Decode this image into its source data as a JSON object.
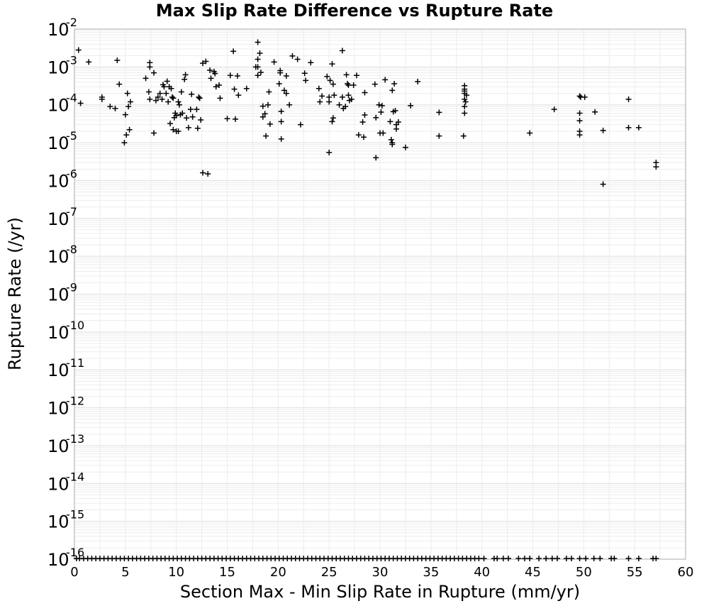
{
  "chart_data": {
    "type": "scatter",
    "title": "Max Slip Rate Difference vs Rupture Rate",
    "xlabel": "Section Max - Min Slip Rate in Rupture (mm/yr)",
    "ylabel": "Rupture Rate (/yr)",
    "xlim": [
      0,
      60
    ],
    "ylim": [
      1e-16,
      0.01
    ],
    "yscale": "log",
    "grid": true,
    "marker": "plus",
    "marker_color": "#000000",
    "x_ticks": [
      "0",
      "5",
      "10",
      "15",
      "20",
      "25",
      "30",
      "35",
      "40",
      "45",
      "50",
      "55",
      "60"
    ],
    "y_ticks": [
      {
        "base": "10",
        "exp": "-2"
      },
      {
        "base": "10",
        "exp": "-3"
      },
      {
        "base": "10",
        "exp": "-4"
      },
      {
        "base": "10",
        "exp": "-5"
      },
      {
        "base": "10",
        "exp": "-6"
      },
      {
        "base": "10",
        "exp": "-7"
      },
      {
        "base": "10",
        "exp": "-8"
      },
      {
        "base": "10",
        "exp": "-9"
      },
      {
        "base": "10",
        "exp": "-10"
      },
      {
        "base": "10",
        "exp": "-11"
      },
      {
        "base": "10",
        "exp": "-12"
      },
      {
        "base": "10",
        "exp": "-13"
      },
      {
        "base": "10",
        "exp": "-14"
      },
      {
        "base": "10",
        "exp": "-15"
      },
      {
        "base": "10",
        "exp": "-16"
      }
    ],
    "points": [
      [
        0.4,
        0.0028
      ],
      [
        0.6,
        0.00011
      ],
      [
        1.4,
        0.00135
      ],
      [
        2.7,
        0.00014
      ],
      [
        2.7,
        0.00016
      ],
      [
        3.5,
        9e-05
      ],
      [
        4.0,
        8e-05
      ],
      [
        4.2,
        0.0015
      ],
      [
        4.4,
        0.00035
      ],
      [
        4.9,
        1e-05
      ],
      [
        5.0,
        5.5e-05
      ],
      [
        5.1,
        1.6e-05
      ],
      [
        5.2,
        0.0002
      ],
      [
        5.3,
        9e-05
      ],
      [
        5.4,
        2.2e-05
      ],
      [
        5.5,
        0.00012
      ],
      [
        7.0,
        0.0005
      ],
      [
        7.3,
        0.00022
      ],
      [
        7.4,
        0.00014
      ],
      [
        7.4,
        0.0013
      ],
      [
        7.4,
        0.001
      ],
      [
        7.8,
        0.0007
      ],
      [
        7.8,
        1.8e-05
      ],
      [
        8.0,
        0.00013
      ],
      [
        8.2,
        0.00016
      ],
      [
        8.4,
        0.0002
      ],
      [
        8.6,
        0.00014
      ],
      [
        8.7,
        0.00034
      ],
      [
        8.8,
        0.0003
      ],
      [
        9.0,
        0.0002
      ],
      [
        9.1,
        0.00042
      ],
      [
        9.2,
        0.00012
      ],
      [
        9.3,
        0.0003
      ],
      [
        9.4,
        3.2e-05
      ],
      [
        9.5,
        0.00027
      ],
      [
        9.6,
        0.00016
      ],
      [
        9.7,
        0.00015
      ],
      [
        9.7,
        2.2e-05
      ],
      [
        9.8,
        4.6e-05
      ],
      [
        9.9,
        6e-05
      ],
      [
        10.0,
        5.2e-05
      ],
      [
        10.0,
        2e-05
      ],
      [
        10.2,
        2e-05
      ],
      [
        10.2,
        0.00012
      ],
      [
        10.3,
        0.0001
      ],
      [
        10.4,
        5.5e-05
      ],
      [
        10.5,
        0.00022
      ],
      [
        10.6,
        6e-05
      ],
      [
        10.8,
        0.00047
      ],
      [
        10.9,
        0.00062
      ],
      [
        11.0,
        4.5e-05
      ],
      [
        11.2,
        2.5e-05
      ],
      [
        11.4,
        7.6e-05
      ],
      [
        11.5,
        0.00019
      ],
      [
        11.6,
        4.8e-05
      ],
      [
        12.0,
        7.6e-05
      ],
      [
        12.1,
        2.4e-05
      ],
      [
        12.2,
        0.00016
      ],
      [
        12.3,
        0.00015
      ],
      [
        12.4,
        4e-05
      ],
      [
        12.6,
        1.6e-06
      ],
      [
        12.6,
        0.00125
      ],
      [
        12.9,
        0.0014
      ],
      [
        13.1,
        1.5e-06
      ],
      [
        13.3,
        0.00082
      ],
      [
        13.4,
        0.0005
      ],
      [
        13.7,
        0.00075
      ],
      [
        13.8,
        0.00067
      ],
      [
        13.9,
        0.0003
      ],
      [
        14.2,
        0.00033
      ],
      [
        14.3,
        0.00015
      ],
      [
        15.0,
        4.3e-05
      ],
      [
        15.3,
        0.0006
      ],
      [
        15.6,
        0.0026
      ],
      [
        15.7,
        0.00026
      ],
      [
        15.8,
        4.2e-05
      ],
      [
        16.0,
        0.00058
      ],
      [
        16.1,
        0.00018
      ],
      [
        16.9,
        0.00027
      ],
      [
        17.8,
        0.001
      ],
      [
        18.0,
        0.0016
      ],
      [
        18.0,
        0.0045
      ],
      [
        18.0,
        0.0006
      ],
      [
        18.0,
        0.001
      ],
      [
        18.2,
        0.0023
      ],
      [
        18.3,
        0.00072
      ],
      [
        18.5,
        9.2e-05
      ],
      [
        18.5,
        4.8e-05
      ],
      [
        18.7,
        5.8e-05
      ],
      [
        18.8,
        1.5e-05
      ],
      [
        19.0,
        0.0001
      ],
      [
        19.1,
        0.00022
      ],
      [
        19.2,
        3.1e-05
      ],
      [
        19.6,
        0.00135
      ],
      [
        20.1,
        0.00036
      ],
      [
        20.2,
        0.0008
      ],
      [
        20.2,
        0.0007
      ],
      [
        20.3,
        6.7e-05
      ],
      [
        20.3,
        3.6e-05
      ],
      [
        20.3,
        1.25e-05
      ],
      [
        20.6,
        0.00024
      ],
      [
        20.8,
        0.0002
      ],
      [
        20.8,
        0.00058
      ],
      [
        21.1,
        0.0001
      ],
      [
        21.4,
        0.00195
      ],
      [
        21.9,
        0.0016
      ],
      [
        22.2,
        3e-05
      ],
      [
        22.6,
        0.00068
      ],
      [
        22.7,
        0.00044
      ],
      [
        23.2,
        0.0013
      ],
      [
        24.0,
        0.00027
      ],
      [
        24.1,
        0.00012
      ],
      [
        24.3,
        0.00017
      ],
      [
        24.8,
        0.00056
      ],
      [
        25.0,
        0.00012
      ],
      [
        25.0,
        0.00016
      ],
      [
        25.0,
        5.5e-06
      ],
      [
        25.1,
        0.00044
      ],
      [
        25.3,
        0.0012
      ],
      [
        25.3,
        3.6e-05
      ],
      [
        25.4,
        4.5e-05
      ],
      [
        25.4,
        0.00035
      ],
      [
        25.5,
        0.00018
      ],
      [
        26.0,
        0.0001
      ],
      [
        26.3,
        0.0027
      ],
      [
        26.3,
        0.00016
      ],
      [
        26.4,
        8e-05
      ],
      [
        26.6,
        9e-05
      ],
      [
        26.7,
        0.00062
      ],
      [
        26.8,
        0.00036
      ],
      [
        26.9,
        0.00033
      ],
      [
        26.9,
        0.00018
      ],
      [
        27.0,
        0.00013
      ],
      [
        27.2,
        0.00014
      ],
      [
        27.4,
        0.00033
      ],
      [
        27.7,
        0.0006
      ],
      [
        27.9,
        1.6e-05
      ],
      [
        28.3,
        3.5e-05
      ],
      [
        28.4,
        1.4e-05
      ],
      [
        28.5,
        5.4e-05
      ],
      [
        28.5,
        0.00021
      ],
      [
        29.5,
        0.00035
      ],
      [
        29.6,
        4.6e-05
      ],
      [
        29.6,
        4e-06
      ],
      [
        29.9,
        0.0001
      ],
      [
        30.0,
        1.8e-05
      ],
      [
        30.1,
        6.4e-05
      ],
      [
        30.2,
        9.5e-05
      ],
      [
        30.3,
        1.8e-05
      ],
      [
        30.5,
        0.00046
      ],
      [
        31.0,
        3.6e-05
      ],
      [
        31.1,
        1.2e-05
      ],
      [
        31.2,
        9e-06
      ],
      [
        31.2,
        1e-05
      ],
      [
        31.2,
        0.00024
      ],
      [
        31.3,
        6.6e-05
      ],
      [
        31.4,
        0.00036
      ],
      [
        31.5,
        7e-05
      ],
      [
        31.6,
        3e-05
      ],
      [
        31.6,
        2.3e-05
      ],
      [
        31.8,
        3.5e-05
      ],
      [
        32.5,
        7.5e-06
      ],
      [
        33.0,
        9.5e-05
      ],
      [
        33.7,
        0.00041
      ],
      [
        35.8,
        6.3e-05
      ],
      [
        35.8,
        1.5e-05
      ],
      [
        38.2,
        1.5e-05
      ],
      [
        38.3,
        6e-05
      ],
      [
        38.3,
        9e-05
      ],
      [
        38.3,
        0.00014
      ],
      [
        38.3,
        0.0002
      ],
      [
        38.3,
        0.00026
      ],
      [
        38.3,
        0.00032
      ],
      [
        38.3,
        0.00023
      ],
      [
        38.4,
        0.00012
      ],
      [
        38.5,
        0.00018
      ],
      [
        44.7,
        1.8e-05
      ],
      [
        47.1,
        7.6e-05
      ],
      [
        49.6,
        0.00017
      ],
      [
        49.6,
        6e-05
      ],
      [
        49.6,
        3.8e-05
      ],
      [
        49.6,
        2e-05
      ],
      [
        49.6,
        1.6e-05
      ],
      [
        49.7,
        0.00016
      ],
      [
        50.1,
        0.00016
      ],
      [
        51.1,
        6.5e-05
      ],
      [
        51.9,
        2.1e-05
      ],
      [
        51.9,
        8e-07
      ],
      [
        54.4,
        0.00014
      ],
      [
        54.4,
        2.5e-05
      ],
      [
        55.4,
        2.5e-05
      ],
      [
        57.1,
        3e-06
      ],
      [
        57.1,
        2.3e-06
      ]
    ],
    "zero_rate_points_x": [
      0.2,
      0.5,
      0.9,
      1.3,
      1.7,
      2.1,
      2.5,
      2.9,
      3.3,
      3.7,
      4.1,
      4.5,
      4.9,
      5.3,
      5.7,
      6.1,
      6.5,
      6.9,
      7.3,
      7.7,
      8.1,
      8.5,
      8.9,
      9.3,
      9.7,
      10.1,
      10.5,
      10.9,
      11.3,
      11.7,
      12.1,
      12.5,
      12.9,
      13.3,
      13.7,
      14.1,
      14.5,
      14.9,
      15.3,
      15.7,
      16.1,
      16.5,
      16.9,
      17.3,
      17.7,
      18.1,
      18.5,
      18.9,
      19.3,
      19.7,
      20.1,
      20.5,
      20.9,
      21.3,
      21.7,
      22.1,
      22.5,
      22.9,
      23.3,
      23.7,
      24.1,
      24.5,
      24.9,
      25.3,
      25.7,
      26.1,
      26.5,
      26.9,
      27.3,
      27.7,
      28.1,
      28.5,
      28.9,
      29.3,
      29.7,
      30.1,
      30.5,
      30.9,
      31.3,
      31.7,
      32.1,
      32.5,
      32.9,
      33.3,
      33.7,
      34.1,
      34.5,
      34.9,
      35.3,
      35.7,
      36.1,
      36.5,
      36.9,
      37.3,
      37.7,
      38.1,
      38.5,
      38.9,
      39.3,
      39.7,
      40.2,
      41.2,
      41.5,
      42.1,
      42.6,
      43.6,
      44.2,
      44.7,
      45.6,
      46.3,
      46.9,
      47.4,
      48.3,
      48.8,
      49.6,
      50.2,
      51.0,
      51.6,
      52.7,
      53.0,
      54.4,
      55.4,
      56.8,
      57.1
    ]
  }
}
